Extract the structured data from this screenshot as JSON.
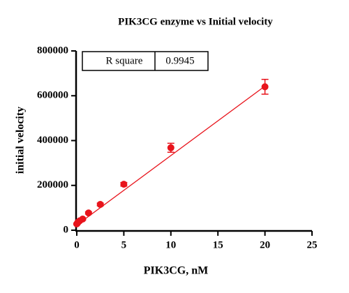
{
  "chart_data": {
    "type": "scatter",
    "title": "PIK3CG enzyme vs Initial velocity",
    "x_label": "PIK3CG, nM",
    "y_label": "initial velocity",
    "x": [
      0,
      0.078,
      0.156,
      0.3125,
      0.625,
      1.25,
      2.5,
      5,
      10,
      20
    ],
    "values": [
      28000,
      32000,
      37000,
      42000,
      50000,
      77000,
      115000,
      205000,
      368000,
      640000
    ],
    "errors": [
      3000,
      3000,
      3000,
      3000,
      4000,
      5000,
      6000,
      8000,
      20000,
      33000
    ],
    "color": "#e8141c",
    "fit_line": {
      "x": [
        0,
        20
      ],
      "values": [
        23000,
        643000
      ]
    },
    "xlim": [
      0,
      25
    ],
    "xticks": [
      0,
      5,
      10,
      15,
      20,
      25
    ],
    "ylim": [
      0,
      800000
    ],
    "yticks": [
      0,
      200000,
      400000,
      600000,
      800000
    ],
    "stats_table": {
      "label": "R square",
      "value": 0.9945
    }
  }
}
